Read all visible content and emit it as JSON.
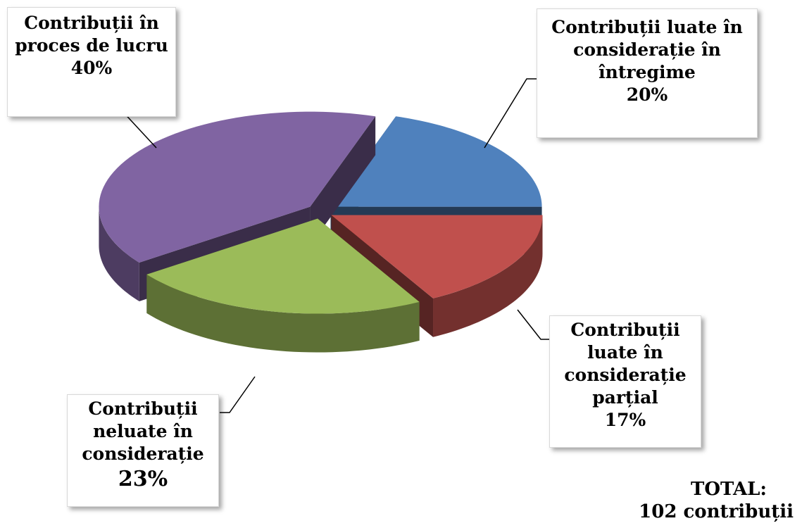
{
  "chart_data": {
    "type": "pie",
    "categories": [
      "Contribuții luate în considerație în întregime",
      "Contribuții luate în considerație parțial",
      "Contribuții neluate în considerație",
      "Contribuții în proces de lucru"
    ],
    "values": [
      20,
      17,
      23,
      40
    ],
    "value_labels": [
      "20%",
      "17%",
      "23%",
      "40%"
    ],
    "colors": [
      "#4f81bd",
      "#c0504d",
      "#9bbb59",
      "#8064a2"
    ],
    "annotations": [
      "TOTAL:",
      "102 contribuții"
    ]
  }
}
